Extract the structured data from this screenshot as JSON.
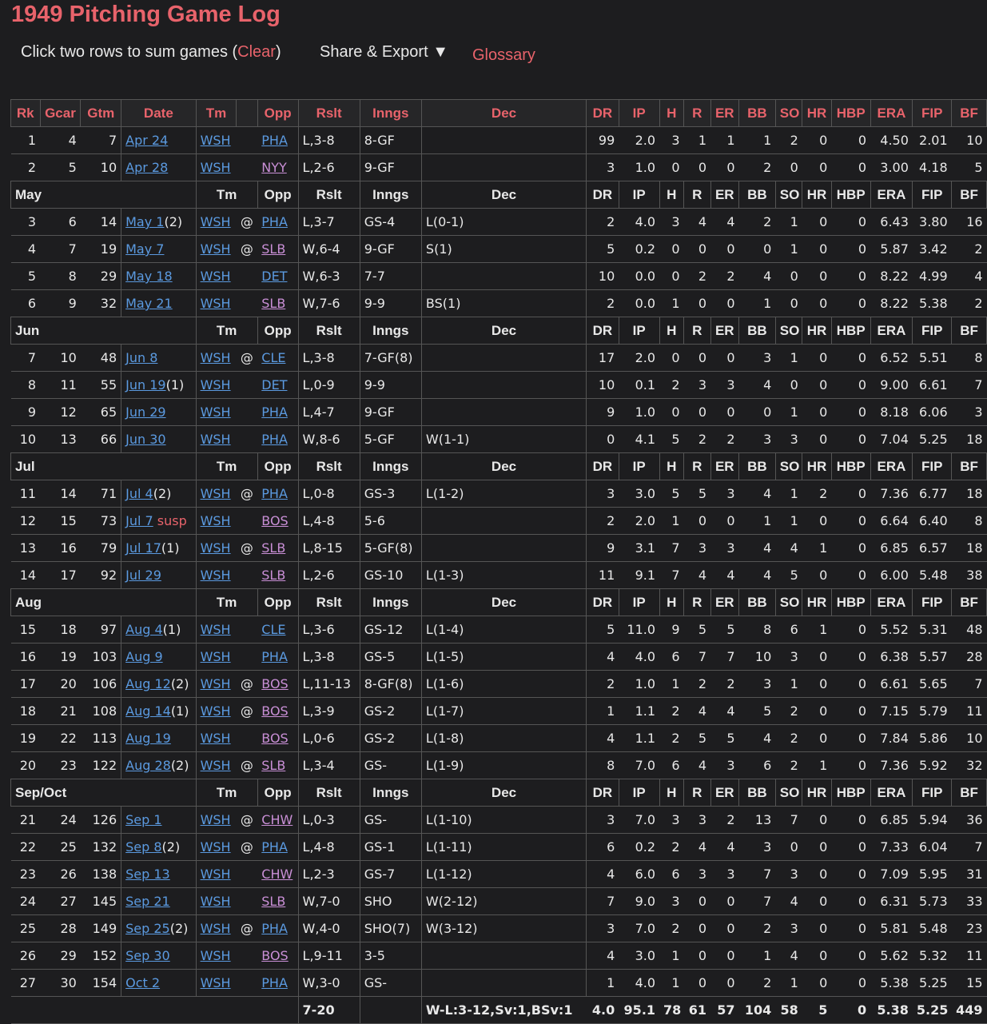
{
  "title": "1949 Pitching Game Log",
  "toolbar": {
    "sum_text": "Click two rows to sum games (",
    "clear_label": "Clear",
    "close_paren": ")",
    "share_label": "Share & Export",
    "share_arrow": "▼",
    "glossary_label": "Glossary"
  },
  "columns": [
    "Rk",
    "Gcar",
    "Gtm",
    "Date",
    "Tm",
    "",
    "Opp",
    "Rslt",
    "Inngs",
    "Dec",
    "DR",
    "IP",
    "H",
    "R",
    "ER",
    "BB",
    "SO",
    "HR",
    "HBP",
    "ERA",
    "FIP",
    "BF"
  ],
  "month_columns": [
    "Tm",
    "Opp",
    "Rslt",
    "Inngs",
    "Dec",
    "DR",
    "IP",
    "H",
    "R",
    "ER",
    "BB",
    "SO",
    "HR",
    "HBP",
    "ERA",
    "FIP",
    "BF"
  ],
  "groups": [
    {
      "month": "",
      "rows": [
        {
          "rk": "1",
          "gcar": "4",
          "gtm": "7",
          "date": "Apr 24",
          "note": "",
          "tm": "WSH",
          "at": "",
          "opp": "PHA",
          "rslt": "L,3-8",
          "inngs": "8-GF",
          "dec": "",
          "dr": "99",
          "ip": "2.0",
          "h": "3",
          "r": "1",
          "er": "1",
          "bb": "1",
          "so": "2",
          "hr": "0",
          "hbp": "0",
          "era": "4.50",
          "fip": "2.01",
          "bf": "10"
        },
        {
          "rk": "2",
          "gcar": "5",
          "gtm": "10",
          "date": "Apr 28",
          "note": "",
          "tm": "WSH",
          "at": "",
          "opp": "NYY",
          "rslt": "L,2-6",
          "inngs": "9-GF",
          "dec": "",
          "dr": "3",
          "ip": "1.0",
          "h": "0",
          "r": "0",
          "er": "0",
          "bb": "2",
          "so": "0",
          "hr": "0",
          "hbp": "0",
          "era": "3.00",
          "fip": "4.18",
          "bf": "5"
        }
      ]
    },
    {
      "month": "May",
      "rows": [
        {
          "rk": "3",
          "gcar": "6",
          "gtm": "14",
          "date": "May 1",
          "note": "(2)",
          "tm": "WSH",
          "at": "@",
          "opp": "PHA",
          "rslt": "L,3-7",
          "inngs": "GS-4",
          "dec": "L(0-1)",
          "dr": "2",
          "ip": "4.0",
          "h": "3",
          "r": "4",
          "er": "4",
          "bb": "2",
          "so": "1",
          "hr": "0",
          "hbp": "0",
          "era": "6.43",
          "fip": "3.80",
          "bf": "16"
        },
        {
          "rk": "4",
          "gcar": "7",
          "gtm": "19",
          "date": "May 7",
          "note": "",
          "tm": "WSH",
          "at": "@",
          "opp": "SLB",
          "rslt": "W,6-4",
          "inngs": "9-GF",
          "dec": "S(1)",
          "dr": "5",
          "ip": "0.2",
          "h": "0",
          "r": "0",
          "er": "0",
          "bb": "0",
          "so": "1",
          "hr": "0",
          "hbp": "0",
          "era": "5.87",
          "fip": "3.42",
          "bf": "2"
        },
        {
          "rk": "5",
          "gcar": "8",
          "gtm": "29",
          "date": "May 18",
          "note": "",
          "tm": "WSH",
          "at": "",
          "opp": "DET",
          "rslt": "W,6-3",
          "inngs": "7-7",
          "dec": "",
          "dr": "10",
          "ip": "0.0",
          "h": "0",
          "r": "2",
          "er": "2",
          "bb": "4",
          "so": "0",
          "hr": "0",
          "hbp": "0",
          "era": "8.22",
          "fip": "4.99",
          "bf": "4"
        },
        {
          "rk": "6",
          "gcar": "9",
          "gtm": "32",
          "date": "May 21",
          "note": "",
          "tm": "WSH",
          "at": "",
          "opp": "SLB",
          "rslt": "W,7-6",
          "inngs": "9-9",
          "dec": "BS(1)",
          "dr": "2",
          "ip": "0.0",
          "h": "1",
          "r": "0",
          "er": "0",
          "bb": "1",
          "so": "0",
          "hr": "0",
          "hbp": "0",
          "era": "8.22",
          "fip": "5.38",
          "bf": "2"
        }
      ]
    },
    {
      "month": "Jun",
      "rows": [
        {
          "rk": "7",
          "gcar": "10",
          "gtm": "48",
          "date": "Jun 8",
          "note": "",
          "tm": "WSH",
          "at": "@",
          "opp": "CLE",
          "rslt": "L,3-8",
          "inngs": "7-GF(8)",
          "dec": "",
          "dr": "17",
          "ip": "2.0",
          "h": "0",
          "r": "0",
          "er": "0",
          "bb": "3",
          "so": "1",
          "hr": "0",
          "hbp": "0",
          "era": "6.52",
          "fip": "5.51",
          "bf": "8"
        },
        {
          "rk": "8",
          "gcar": "11",
          "gtm": "55",
          "date": "Jun 19",
          "note": "(1)",
          "tm": "WSH",
          "at": "",
          "opp": "DET",
          "rslt": "L,0-9",
          "inngs": "9-9",
          "dec": "",
          "dr": "10",
          "ip": "0.1",
          "h": "2",
          "r": "3",
          "er": "3",
          "bb": "4",
          "so": "0",
          "hr": "0",
          "hbp": "0",
          "era": "9.00",
          "fip": "6.61",
          "bf": "7"
        },
        {
          "rk": "9",
          "gcar": "12",
          "gtm": "65",
          "date": "Jun 29",
          "note": "",
          "tm": "WSH",
          "at": "",
          "opp": "PHA",
          "rslt": "L,4-7",
          "inngs": "9-GF",
          "dec": "",
          "dr": "9",
          "ip": "1.0",
          "h": "0",
          "r": "0",
          "er": "0",
          "bb": "0",
          "so": "1",
          "hr": "0",
          "hbp": "0",
          "era": "8.18",
          "fip": "6.06",
          "bf": "3"
        },
        {
          "rk": "10",
          "gcar": "13",
          "gtm": "66",
          "date": "Jun 30",
          "note": "",
          "tm": "WSH",
          "at": "",
          "opp": "PHA",
          "rslt": "W,8-6",
          "inngs": "5-GF",
          "dec": "W(1-1)",
          "dr": "0",
          "ip": "4.1",
          "h": "5",
          "r": "2",
          "er": "2",
          "bb": "3",
          "so": "3",
          "hr": "0",
          "hbp": "0",
          "era": "7.04",
          "fip": "5.25",
          "bf": "18"
        }
      ]
    },
    {
      "month": "Jul",
      "rows": [
        {
          "rk": "11",
          "gcar": "14",
          "gtm": "71",
          "date": "Jul 4",
          "note": "(2)",
          "tm": "WSH",
          "at": "@",
          "opp": "PHA",
          "rslt": "L,0-8",
          "inngs": "GS-3",
          "dec": "L(1-2)",
          "dr": "3",
          "ip": "3.0",
          "h": "5",
          "r": "5",
          "er": "3",
          "bb": "4",
          "so": "1",
          "hr": "2",
          "hbp": "0",
          "era": "7.36",
          "fip": "6.77",
          "bf": "18"
        },
        {
          "rk": "12",
          "gcar": "15",
          "gtm": "73",
          "date": "Jul 7",
          "note": " susp",
          "tm": "WSH",
          "at": "",
          "opp": "BOS",
          "rslt": "L,4-8",
          "inngs": "5-6",
          "dec": "",
          "dr": "2",
          "ip": "2.0",
          "h": "1",
          "r": "0",
          "er": "0",
          "bb": "1",
          "so": "1",
          "hr": "0",
          "hbp": "0",
          "era": "6.64",
          "fip": "6.40",
          "bf": "8"
        },
        {
          "rk": "13",
          "gcar": "16",
          "gtm": "79",
          "date": "Jul 17",
          "note": "(1)",
          "tm": "WSH",
          "at": "@",
          "opp": "SLB",
          "rslt": "L,8-15",
          "inngs": "5-GF(8)",
          "dec": "",
          "dr": "9",
          "ip": "3.1",
          "h": "7",
          "r": "3",
          "er": "3",
          "bb": "4",
          "so": "4",
          "hr": "1",
          "hbp": "0",
          "era": "6.85",
          "fip": "6.57",
          "bf": "18"
        },
        {
          "rk": "14",
          "gcar": "17",
          "gtm": "92",
          "date": "Jul 29",
          "note": "",
          "tm": "WSH",
          "at": "",
          "opp": "SLB",
          "rslt": "L,2-6",
          "inngs": "GS-10",
          "dec": "L(1-3)",
          "dr": "11",
          "ip": "9.1",
          "h": "7",
          "r": "4",
          "er": "4",
          "bb": "4",
          "so": "5",
          "hr": "0",
          "hbp": "0",
          "era": "6.00",
          "fip": "5.48",
          "bf": "38"
        }
      ]
    },
    {
      "month": "Aug",
      "rows": [
        {
          "rk": "15",
          "gcar": "18",
          "gtm": "97",
          "date": "Aug 4",
          "note": "(1)",
          "tm": "WSH",
          "at": "",
          "opp": "CLE",
          "rslt": "L,3-6",
          "inngs": "GS-12",
          "dec": "L(1-4)",
          "dr": "5",
          "ip": "11.0",
          "h": "9",
          "r": "5",
          "er": "5",
          "bb": "8",
          "so": "6",
          "hr": "1",
          "hbp": "0",
          "era": "5.52",
          "fip": "5.31",
          "bf": "48"
        },
        {
          "rk": "16",
          "gcar": "19",
          "gtm": "103",
          "date": "Aug 9",
          "note": "",
          "tm": "WSH",
          "at": "",
          "opp": "PHA",
          "rslt": "L,3-8",
          "inngs": "GS-5",
          "dec": "L(1-5)",
          "dr": "4",
          "ip": "4.0",
          "h": "6",
          "r": "7",
          "er": "7",
          "bb": "10",
          "so": "3",
          "hr": "0",
          "hbp": "0",
          "era": "6.38",
          "fip": "5.57",
          "bf": "28"
        },
        {
          "rk": "17",
          "gcar": "20",
          "gtm": "106",
          "date": "Aug 12",
          "note": "(2)",
          "tm": "WSH",
          "at": "@",
          "opp": "BOS",
          "rslt": "L,11-13",
          "inngs": "8-GF(8)",
          "dec": "L(1-6)",
          "dr": "2",
          "ip": "1.0",
          "h": "1",
          "r": "2",
          "er": "2",
          "bb": "3",
          "so": "1",
          "hr": "0",
          "hbp": "0",
          "era": "6.61",
          "fip": "5.65",
          "bf": "7"
        },
        {
          "rk": "18",
          "gcar": "21",
          "gtm": "108",
          "date": "Aug 14",
          "note": "(1)",
          "tm": "WSH",
          "at": "@",
          "opp": "BOS",
          "rslt": "L,3-9",
          "inngs": "GS-2",
          "dec": "L(1-7)",
          "dr": "1",
          "ip": "1.1",
          "h": "2",
          "r": "4",
          "er": "4",
          "bb": "5",
          "so": "2",
          "hr": "0",
          "hbp": "0",
          "era": "7.15",
          "fip": "5.79",
          "bf": "11"
        },
        {
          "rk": "19",
          "gcar": "22",
          "gtm": "113",
          "date": "Aug 19",
          "note": "",
          "tm": "WSH",
          "at": "",
          "opp": "BOS",
          "rslt": "L,0-6",
          "inngs": "GS-2",
          "dec": "L(1-8)",
          "dr": "4",
          "ip": "1.1",
          "h": "2",
          "r": "5",
          "er": "5",
          "bb": "4",
          "so": "2",
          "hr": "0",
          "hbp": "0",
          "era": "7.84",
          "fip": "5.86",
          "bf": "10"
        },
        {
          "rk": "20",
          "gcar": "23",
          "gtm": "122",
          "date": "Aug 28",
          "note": "(2)",
          "tm": "WSH",
          "at": "@",
          "opp": "SLB",
          "rslt": "L,3-4",
          "inngs": "GS-",
          "dec": "L(1-9)",
          "dr": "8",
          "ip": "7.0",
          "h": "6",
          "r": "4",
          "er": "3",
          "bb": "6",
          "so": "2",
          "hr": "1",
          "hbp": "0",
          "era": "7.36",
          "fip": "5.92",
          "bf": "32"
        }
      ]
    },
    {
      "month": "Sep/Oct",
      "rows": [
        {
          "rk": "21",
          "gcar": "24",
          "gtm": "126",
          "date": "Sep 1",
          "note": "",
          "tm": "WSH",
          "at": "@",
          "opp": "CHW",
          "rslt": "L,0-3",
          "inngs": "GS-",
          "dec": "L(1-10)",
          "dr": "3",
          "ip": "7.0",
          "h": "3",
          "r": "3",
          "er": "2",
          "bb": "13",
          "so": "7",
          "hr": "0",
          "hbp": "0",
          "era": "6.85",
          "fip": "5.94",
          "bf": "36"
        },
        {
          "rk": "22",
          "gcar": "25",
          "gtm": "132",
          "date": "Sep 8",
          "note": "(2)",
          "tm": "WSH",
          "at": "@",
          "opp": "PHA",
          "rslt": "L,4-8",
          "inngs": "GS-1",
          "dec": "L(1-11)",
          "dr": "6",
          "ip": "0.2",
          "h": "2",
          "r": "4",
          "er": "4",
          "bb": "3",
          "so": "0",
          "hr": "0",
          "hbp": "0",
          "era": "7.33",
          "fip": "6.04",
          "bf": "7"
        },
        {
          "rk": "23",
          "gcar": "26",
          "gtm": "138",
          "date": "Sep 13",
          "note": "",
          "tm": "WSH",
          "at": "",
          "opp": "CHW",
          "rslt": "L,2-3",
          "inngs": "GS-7",
          "dec": "L(1-12)",
          "dr": "4",
          "ip": "6.0",
          "h": "6",
          "r": "3",
          "er": "3",
          "bb": "7",
          "so": "3",
          "hr": "0",
          "hbp": "0",
          "era": "7.09",
          "fip": "5.95",
          "bf": "31"
        },
        {
          "rk": "24",
          "gcar": "27",
          "gtm": "145",
          "date": "Sep 21",
          "note": "",
          "tm": "WSH",
          "at": "",
          "opp": "SLB",
          "rslt": "W,7-0",
          "inngs": "SHO",
          "dec": "W(2-12)",
          "dr": "7",
          "ip": "9.0",
          "h": "3",
          "r": "0",
          "er": "0",
          "bb": "7",
          "so": "4",
          "hr": "0",
          "hbp": "0",
          "era": "6.31",
          "fip": "5.73",
          "bf": "33"
        },
        {
          "rk": "25",
          "gcar": "28",
          "gtm": "149",
          "date": "Sep 25",
          "note": "(2)",
          "tm": "WSH",
          "at": "@",
          "opp": "PHA",
          "rslt": "W,4-0",
          "inngs": "SHO(7)",
          "dec": "W(3-12)",
          "dr": "3",
          "ip": "7.0",
          "h": "2",
          "r": "0",
          "er": "0",
          "bb": "2",
          "so": "3",
          "hr": "0",
          "hbp": "0",
          "era": "5.81",
          "fip": "5.48",
          "bf": "23"
        },
        {
          "rk": "26",
          "gcar": "29",
          "gtm": "152",
          "date": "Sep 30",
          "note": "",
          "tm": "WSH",
          "at": "",
          "opp": "BOS",
          "rslt": "L,9-11",
          "inngs": "3-5",
          "dec": "",
          "dr": "4",
          "ip": "3.0",
          "h": "1",
          "r": "0",
          "er": "0",
          "bb": "1",
          "so": "4",
          "hr": "0",
          "hbp": "0",
          "era": "5.62",
          "fip": "5.32",
          "bf": "11"
        },
        {
          "rk": "27",
          "gcar": "30",
          "gtm": "154",
          "date": "Oct 2",
          "note": "",
          "tm": "WSH",
          "at": "",
          "opp": "PHA",
          "rslt": "W,3-0",
          "inngs": "GS-",
          "dec": "",
          "dr": "1",
          "ip": "4.0",
          "h": "1",
          "r": "0",
          "er": "0",
          "bb": "2",
          "so": "1",
          "hr": "0",
          "hbp": "0",
          "era": "5.38",
          "fip": "5.25",
          "bf": "15"
        }
      ]
    }
  ],
  "totals": {
    "rslt": "7-20",
    "dec": "W-L:3-12,Sv:1,BSv:1",
    "dr": "4.0",
    "ip": "95.1",
    "h": "78",
    "r": "61",
    "er": "57",
    "bb": "104",
    "so": "58",
    "hr": "5",
    "hbp": "0",
    "era": "5.38",
    "fip": "5.25",
    "bf": "449"
  },
  "visited_opps": [
    "NYY",
    "SLB",
    "BOS",
    "CHW"
  ],
  "colors": {
    "background": "#1d1d1f",
    "accent": "#e8636b",
    "link": "#5b9ae0",
    "visited_link": "#c98fd6",
    "text": "#e8e8e8"
  }
}
